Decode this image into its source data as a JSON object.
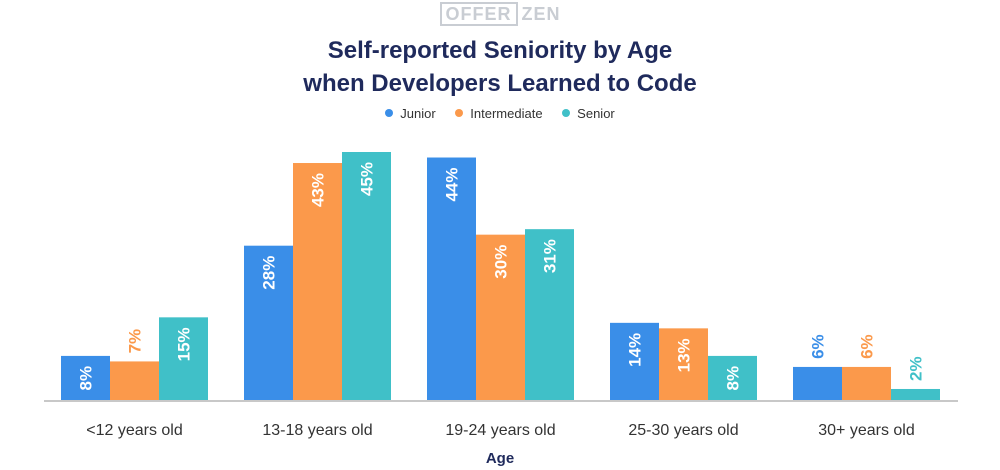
{
  "logo": {
    "left": "OFFER",
    "right": "ZEN"
  },
  "title_line1": "Self-reported Seniority by Age",
  "title_line2": "when Developers Learned to Code",
  "colors": {
    "junior": "#3a8ee8",
    "intermediate": "#fb994b",
    "senior": "#40c0c8"
  },
  "chart_data": {
    "type": "bar",
    "title": "Self-reported Seniority by Age when Developers Learned to Code",
    "xlabel": "Age",
    "ylabel": "",
    "ylim": [
      0,
      45
    ],
    "legend_position": "top-center",
    "grid": false,
    "categories": [
      "<12 years old",
      "13-18 years old",
      "19-24 years old",
      "25-30 years old",
      "30+ years old"
    ],
    "series": [
      {
        "name": "Junior",
        "color": "#3a8ee8",
        "values": [
          8,
          28,
          44,
          14,
          6
        ],
        "labels": [
          "8%",
          "28%",
          "44%",
          "14%",
          "6%"
        ]
      },
      {
        "name": "Intermediate",
        "color": "#fb994b",
        "values": [
          7,
          43,
          30,
          13,
          6
        ],
        "labels": [
          "7%",
          "43%",
          "30%",
          "13%",
          "6%"
        ]
      },
      {
        "name": "Senior",
        "color": "#40c0c8",
        "values": [
          15,
          45,
          31,
          8,
          2
        ],
        "labels": [
          "15%",
          "45%",
          "31%",
          "8%",
          "2%"
        ]
      }
    ]
  }
}
